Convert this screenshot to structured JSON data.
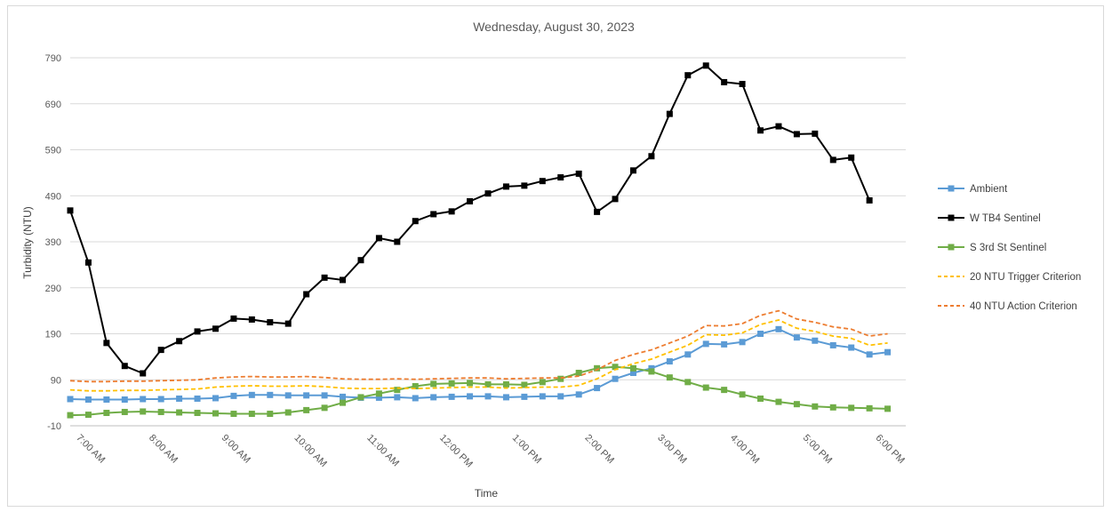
{
  "chart_data": {
    "type": "line",
    "title": "Wednesday, August 30, 2023",
    "xlabel": "Time",
    "ylabel": "Turbidity (NTU)",
    "ylim": [
      -10,
      790
    ],
    "yticks": [
      -10,
      90,
      190,
      290,
      390,
      490,
      590,
      690,
      790
    ],
    "xlim_hours": [
      6.75,
      18.25
    ],
    "xticks": [
      {
        "hour": 7,
        "label": "7:00 AM"
      },
      {
        "hour": 8,
        "label": "8:00 AM"
      },
      {
        "hour": 9,
        "label": "9:00 AM"
      },
      {
        "hour": 10,
        "label": "10:00 AM"
      },
      {
        "hour": 11,
        "label": "11:00 AM"
      },
      {
        "hour": 12,
        "label": "12:00 PM"
      },
      {
        "hour": 13,
        "label": "1:00 PM"
      },
      {
        "hour": 14,
        "label": "2:00 PM"
      },
      {
        "hour": 15,
        "label": "3:00 PM"
      },
      {
        "hour": 16,
        "label": "4:00 PM"
      },
      {
        "hour": 17,
        "label": "5:00 PM"
      },
      {
        "hour": 18,
        "label": "6:00 PM"
      }
    ],
    "x_start_hour": 6.75,
    "x_step_hours": 0.25,
    "gridlines": "horizontal",
    "legend_position": "right",
    "series": [
      {
        "name": "Ambient",
        "style": "line-square-markers",
        "color": "#5b9bd5",
        "values": [
          48,
          47,
          47,
          47,
          48,
          48,
          49,
          49,
          50,
          55,
          57,
          57,
          56,
          56,
          56,
          53,
          51,
          51,
          52,
          50,
          52,
          53,
          54,
          54,
          52,
          53,
          54,
          54,
          58,
          72,
          92,
          105,
          115,
          130,
          145,
          168,
          167,
          172,
          190,
          200,
          182,
          175,
          165,
          160,
          145,
          150
        ]
      },
      {
        "name": "W TB4 Sentinel",
        "style": "line-square-markers",
        "color": "#000000",
        "values": [
          458,
          345,
          170,
          120,
          104,
          155,
          174,
          195,
          201,
          223,
          221,
          215,
          212,
          276,
          312,
          307,
          350,
          398,
          390,
          435,
          450,
          456,
          478,
          495,
          510,
          512,
          522,
          530,
          538,
          455,
          483,
          545,
          576,
          668,
          752,
          773,
          737,
          733,
          632,
          641,
          624,
          625,
          568,
          573,
          480
        ]
      },
      {
        "name": "S 3rd St Sentinel",
        "style": "line-square-markers",
        "color": "#70ad47",
        "values": [
          13,
          14,
          18,
          20,
          21,
          20,
          19,
          18,
          17,
          16,
          16,
          16,
          19,
          24,
          29,
          40,
          52,
          60,
          68,
          76,
          81,
          82,
          83,
          80,
          80,
          79,
          85,
          92,
          105,
          115,
          118,
          115,
          108,
          95,
          85,
          73,
          68,
          58,
          49,
          42,
          37,
          32,
          30,
          29,
          28,
          27
        ]
      },
      {
        "name": "20 NTU Trigger Criterion",
        "style": "dashed",
        "color": "#ffc000",
        "values": [
          68,
          66,
          66,
          67,
          67,
          68,
          69,
          70,
          74,
          76,
          77,
          76,
          76,
          77,
          75,
          72,
          71,
          71,
          72,
          71,
          72,
          73,
          74,
          74,
          72,
          73,
          74,
          74,
          78,
          92,
          112,
          125,
          135,
          150,
          165,
          188,
          187,
          192,
          210,
          220,
          202,
          195,
          185,
          180,
          165,
          170
        ]
      },
      {
        "name": "40 NTU Action Criterion",
        "style": "dashed",
        "color": "#ed7d31",
        "values": [
          88,
          86,
          86,
          87,
          87,
          88,
          89,
          90,
          94,
          96,
          97,
          96,
          96,
          97,
          95,
          92,
          91,
          91,
          92,
          91,
          92,
          93,
          94,
          94,
          92,
          93,
          94,
          94,
          98,
          112,
          132,
          145,
          155,
          170,
          185,
          208,
          207,
          212,
          230,
          240,
          222,
          215,
          205,
          200,
          185,
          190
        ]
      }
    ]
  }
}
